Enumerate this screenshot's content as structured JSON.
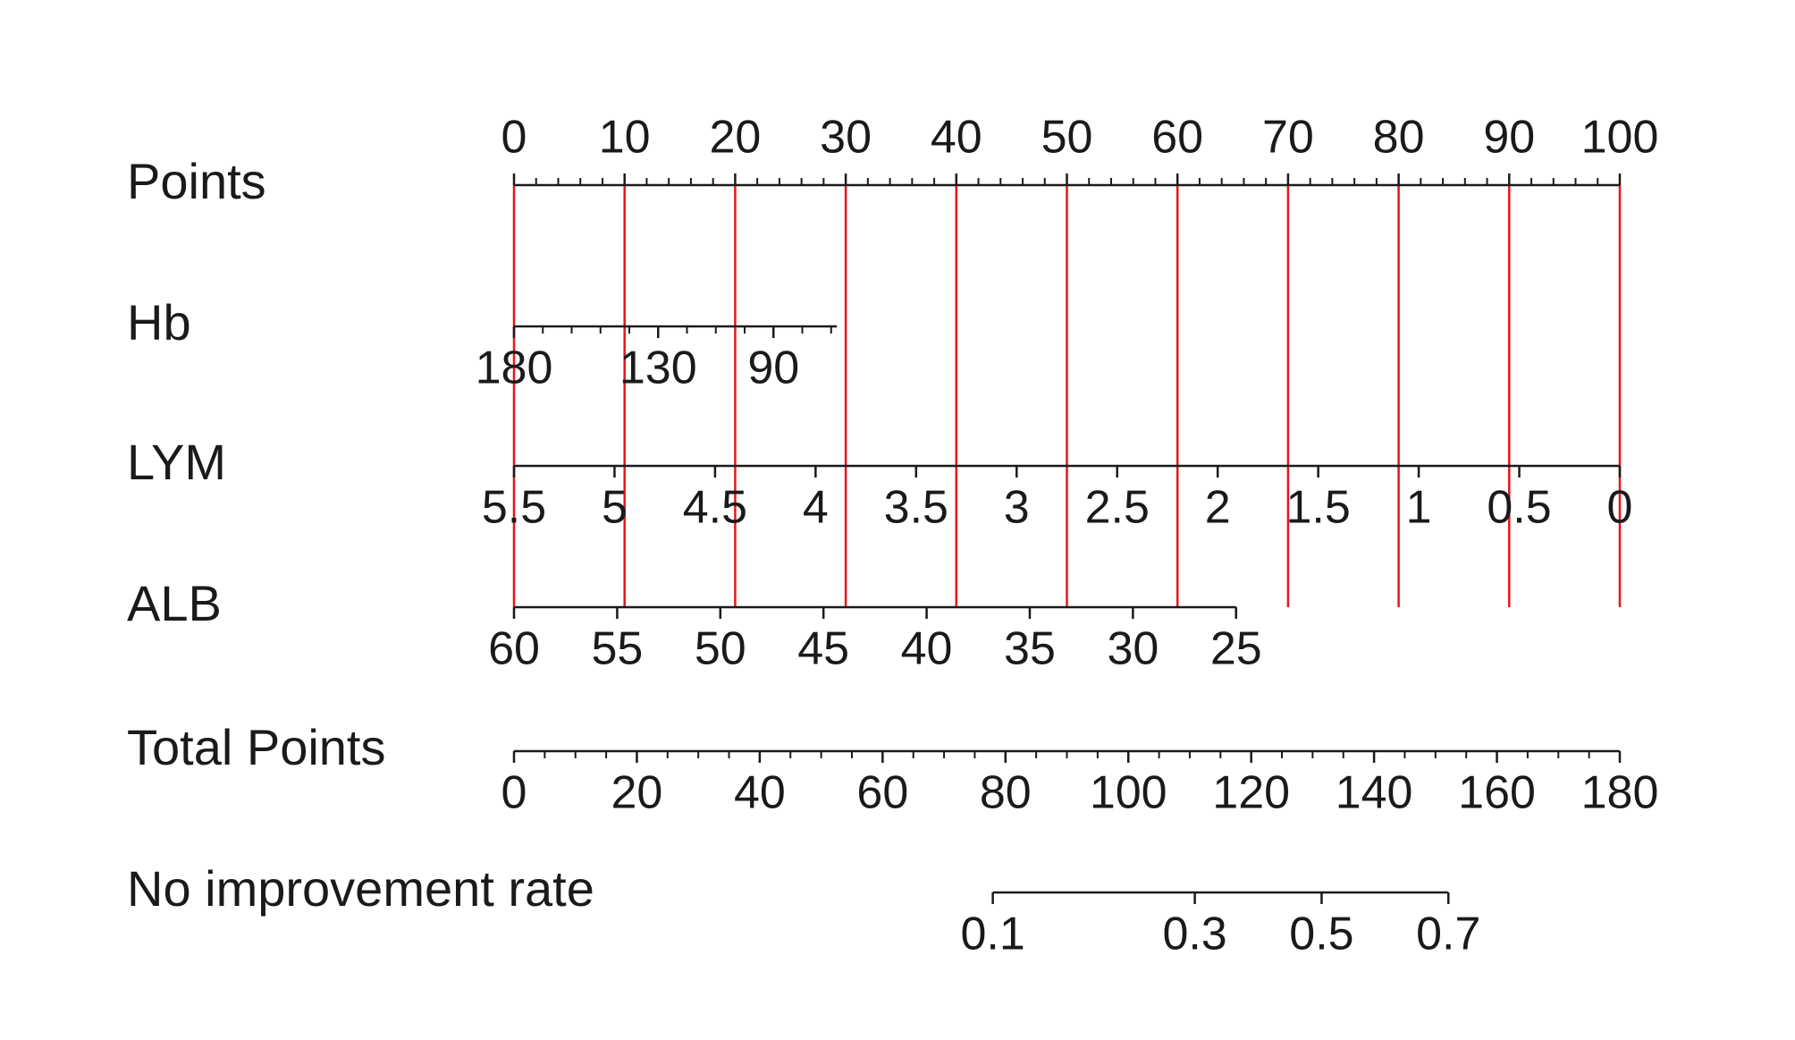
{
  "chart_data": {
    "type": "nomogram",
    "points_lim": [
      0,
      100
    ],
    "guide_color": "#e8141b",
    "axis_color": "#1a1a1a",
    "rows": [
      {
        "label": "Points",
        "scale": "linear",
        "lim": [
          0,
          100
        ],
        "points_lim": [
          0,
          100
        ],
        "tick_side": "top",
        "guides": true,
        "ticks": [
          0,
          10,
          20,
          30,
          40,
          50,
          60,
          70,
          80,
          90,
          100
        ],
        "minor_ticks": [
          2,
          4,
          6,
          8,
          12,
          14,
          16,
          18,
          22,
          24,
          26,
          28,
          32,
          34,
          36,
          38,
          42,
          44,
          46,
          48,
          52,
          54,
          56,
          58,
          62,
          64,
          66,
          68,
          72,
          74,
          76,
          78,
          82,
          84,
          86,
          88,
          92,
          94,
          96,
          98
        ]
      },
      {
        "label": "Hb",
        "scale": "linear",
        "lim": [
          180,
          68
        ],
        "points_lim": [
          0,
          29.2
        ],
        "tick_side": "bottom",
        "guides": false,
        "ticks": [
          180,
          130,
          90
        ],
        "minor_ticks": [
          170,
          160,
          150,
          140,
          120,
          110,
          100,
          80,
          70
        ]
      },
      {
        "label": "LYM",
        "scale": "linear",
        "lim": [
          5.5,
          0
        ],
        "points_lim": [
          0,
          100
        ],
        "tick_side": "bottom",
        "guides": false,
        "ticks": [
          5.5,
          5,
          4.5,
          4,
          3.5,
          3,
          2.5,
          2,
          1.5,
          1,
          0.5,
          0
        ],
        "minor_ticks": []
      },
      {
        "label": "ALB",
        "scale": "linear",
        "lim": [
          60,
          25
        ],
        "points_lim": [
          0,
          65.3
        ],
        "tick_side": "bottom",
        "guides": false,
        "ticks": [
          60,
          55,
          50,
          45,
          40,
          35,
          30,
          25
        ],
        "minor_ticks": []
      },
      {
        "label": "Total Points",
        "scale": "linear",
        "lim": [
          0,
          180
        ],
        "points_lim": [
          0,
          100
        ],
        "tick_side": "bottom",
        "guides": false,
        "ticks": [
          0,
          20,
          40,
          60,
          80,
          100,
          120,
          140,
          160,
          180
        ],
        "minor_ticks": [
          5,
          10,
          15,
          25,
          30,
          35,
          45,
          50,
          55,
          65,
          70,
          75,
          85,
          90,
          95,
          105,
          110,
          115,
          125,
          130,
          135,
          145,
          150,
          155,
          165,
          170,
          175
        ]
      },
      {
        "label": "No improvement rate",
        "scale": "logit",
        "lim": [
          0.1,
          0.7
        ],
        "points_lim": [
          43.3,
          84.5
        ],
        "tick_side": "bottom",
        "guides": false,
        "ticks": [
          0.1,
          0.3,
          0.5,
          0.7
        ],
        "minor_ticks": []
      }
    ]
  }
}
